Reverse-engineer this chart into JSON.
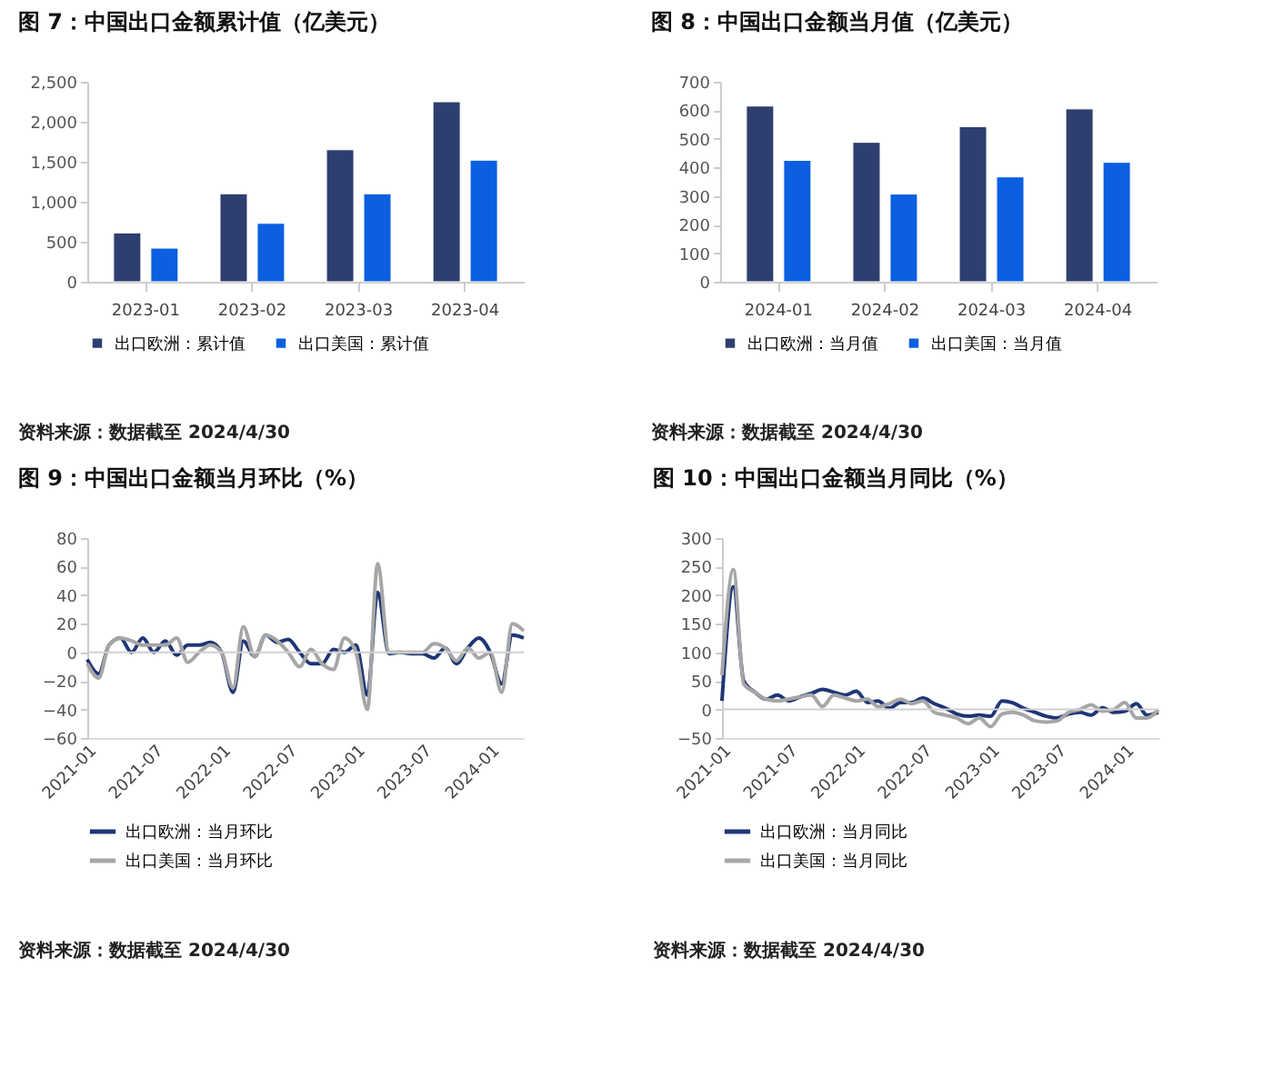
{
  "chart_data": [
    {
      "type": "bar",
      "title": "图 7：中国出口金额累计值（亿美元）",
      "categories": [
        "2023-01",
        "2023-02",
        "2023-03",
        "2023-04"
      ],
      "series": [
        {
          "name": "出口欧洲：累计值",
          "color": "#2e3e6e",
          "values": [
            610,
            1100,
            1650,
            2250
          ]
        },
        {
          "name": "出口美国：累计值",
          "color": "#0b5fe0",
          "values": [
            420,
            730,
            1100,
            1520
          ]
        }
      ],
      "ylim": [
        0,
        2500
      ],
      "yticks": [
        {
          "value": 0,
          "label": "0"
        },
        {
          "value": 500,
          "label": "500"
        },
        {
          "value": 1000,
          "label": "1,000"
        },
        {
          "value": 1500,
          "label": "1,500"
        },
        {
          "value": 2000,
          "label": "2,000"
        },
        {
          "value": 2500,
          "label": "2,500"
        }
      ],
      "legend": "bottom",
      "grid": false,
      "annotations": [
        "资料来源：数据截至 2024/4/30"
      ]
    },
    {
      "type": "bar",
      "title": "图 8：中国出口金额当月值（亿美元）",
      "categories": [
        "2024-01",
        "2024-02",
        "2024-03",
        "2024-04"
      ],
      "series": [
        {
          "name": "出口欧洲：当月值",
          "color": "#2e3e6e",
          "values": [
            615,
            488,
            543,
            605
          ]
        },
        {
          "name": "出口美国：当月值",
          "color": "#0b5fe0",
          "values": [
            425,
            307,
            367,
            418
          ]
        }
      ],
      "ylim": [
        0,
        700
      ],
      "yticks": [
        0,
        100,
        200,
        300,
        400,
        500,
        600,
        700
      ],
      "legend": "bottom",
      "grid": false,
      "annotations": [
        "资料来源：数据截至 2024/4/30"
      ]
    },
    {
      "type": "line",
      "title": "图 9：中国出口金额当月环比（%）",
      "x": [
        "2021-01",
        "2021-02",
        "2021-03",
        "2021-04",
        "2021-05",
        "2021-06",
        "2021-07",
        "2021-08",
        "2021-09",
        "2021-10",
        "2021-11",
        "2021-12",
        "2022-01",
        "2022-02",
        "2022-03",
        "2022-04",
        "2022-05",
        "2022-06",
        "2022-07",
        "2022-08",
        "2022-09",
        "2022-10",
        "2022-11",
        "2022-12",
        "2023-01",
        "2023-02",
        "2023-03",
        "2023-04",
        "2023-05",
        "2023-06",
        "2023-07",
        "2023-08",
        "2023-09",
        "2023-10",
        "2023-11",
        "2023-12",
        "2024-01",
        "2024-02",
        "2024-03",
        "2024-04"
      ],
      "series": [
        {
          "name": "出口欧洲：当月环比",
          "color": "#1f3577",
          "values": [
            -5,
            -15,
            5,
            10,
            0,
            10,
            0,
            8,
            -2,
            5,
            5,
            7,
            0,
            -28,
            8,
            -3,
            12,
            7,
            9,
            0,
            -8,
            -8,
            2,
            0,
            5,
            -30,
            42,
            -1,
            0,
            -1,
            -1,
            -4,
            3,
            -8,
            3,
            10,
            0,
            -22,
            12,
            10
          ]
        },
        {
          "name": "出口美国：当月环比",
          "color": "#a6a6a6",
          "values": [
            -8,
            -18,
            5,
            10,
            8,
            5,
            5,
            5,
            10,
            -7,
            0,
            5,
            0,
            -25,
            18,
            -3,
            12,
            8,
            0,
            -10,
            2,
            -8,
            -12,
            10,
            0,
            -40,
            62,
            0,
            0,
            0,
            0,
            6,
            3,
            -6,
            3,
            -4,
            0,
            -28,
            20,
            15
          ]
        }
      ],
      "xlim": [
        "2021-01",
        "2024-04"
      ],
      "xticks": [
        "2021-01",
        "2021-07",
        "2022-01",
        "2022-07",
        "2023-01",
        "2023-07",
        "2024-01"
      ],
      "ylim": [
        -60,
        80
      ],
      "yticks": [
        -60,
        -40,
        -20,
        0,
        20,
        40,
        60,
        80
      ],
      "ref_lines": [
        {
          "axis": "y",
          "value": 0
        }
      ],
      "legend": "bottom",
      "grid": false,
      "marker": "none",
      "line_style": "solid",
      "annotations": [
        "资料来源：数据截至 2024/4/30"
      ]
    },
    {
      "type": "line",
      "title": "图 10：中国出口金额当月同比（%）",
      "x": [
        "2021-01",
        "2021-02",
        "2021-03",
        "2021-04",
        "2021-05",
        "2021-06",
        "2021-07",
        "2021-08",
        "2021-09",
        "2021-10",
        "2021-11",
        "2021-12",
        "2022-01",
        "2022-02",
        "2022-03",
        "2022-04",
        "2022-05",
        "2022-06",
        "2022-07",
        "2022-08",
        "2022-09",
        "2022-10",
        "2022-11",
        "2022-12",
        "2023-01",
        "2023-02",
        "2023-03",
        "2023-04",
        "2023-05",
        "2023-06",
        "2023-07",
        "2023-08",
        "2023-09",
        "2023-10",
        "2023-11",
        "2023-12",
        "2024-01",
        "2024-02",
        "2024-03",
        "2024-04"
      ],
      "series": [
        {
          "name": "出口欧洲：当月同比",
          "color": "#1f3577",
          "values": [
            15,
            215,
            50,
            30,
            18,
            25,
            15,
            22,
            28,
            35,
            30,
            25,
            32,
            12,
            15,
            2,
            12,
            12,
            20,
            10,
            2,
            -8,
            -12,
            -10,
            -12,
            15,
            12,
            2,
            -5,
            -12,
            -15,
            -8,
            -5,
            -10,
            3,
            -5,
            -3,
            10,
            -10,
            -5
          ]
        },
        {
          "name": "出口美国：当月同比",
          "color": "#a6a6a6",
          "values": [
            60,
            245,
            45,
            30,
            18,
            15,
            18,
            22,
            25,
            5,
            25,
            20,
            15,
            18,
            5,
            10,
            18,
            10,
            15,
            -5,
            -10,
            -15,
            -25,
            -15,
            -30,
            -8,
            -5,
            -10,
            -20,
            -22,
            -20,
            -5,
            0,
            8,
            -3,
            0,
            12,
            -15,
            -15,
            0
          ]
        }
      ],
      "xlim": [
        "2021-01",
        "2024-04"
      ],
      "xticks": [
        "2021-01",
        "2021-07",
        "2022-01",
        "2022-07",
        "2023-01",
        "2023-07",
        "2024-01"
      ],
      "ylim": [
        -50,
        300
      ],
      "yticks": [
        -50,
        0,
        50,
        100,
        150,
        200,
        250,
        300
      ],
      "ref_lines": [
        {
          "axis": "y",
          "value": 0
        }
      ],
      "legend": "bottom",
      "grid": false,
      "marker": "none",
      "line_style": "solid",
      "annotations": [
        "资料来源：数据截至 2024/4/30"
      ]
    }
  ]
}
